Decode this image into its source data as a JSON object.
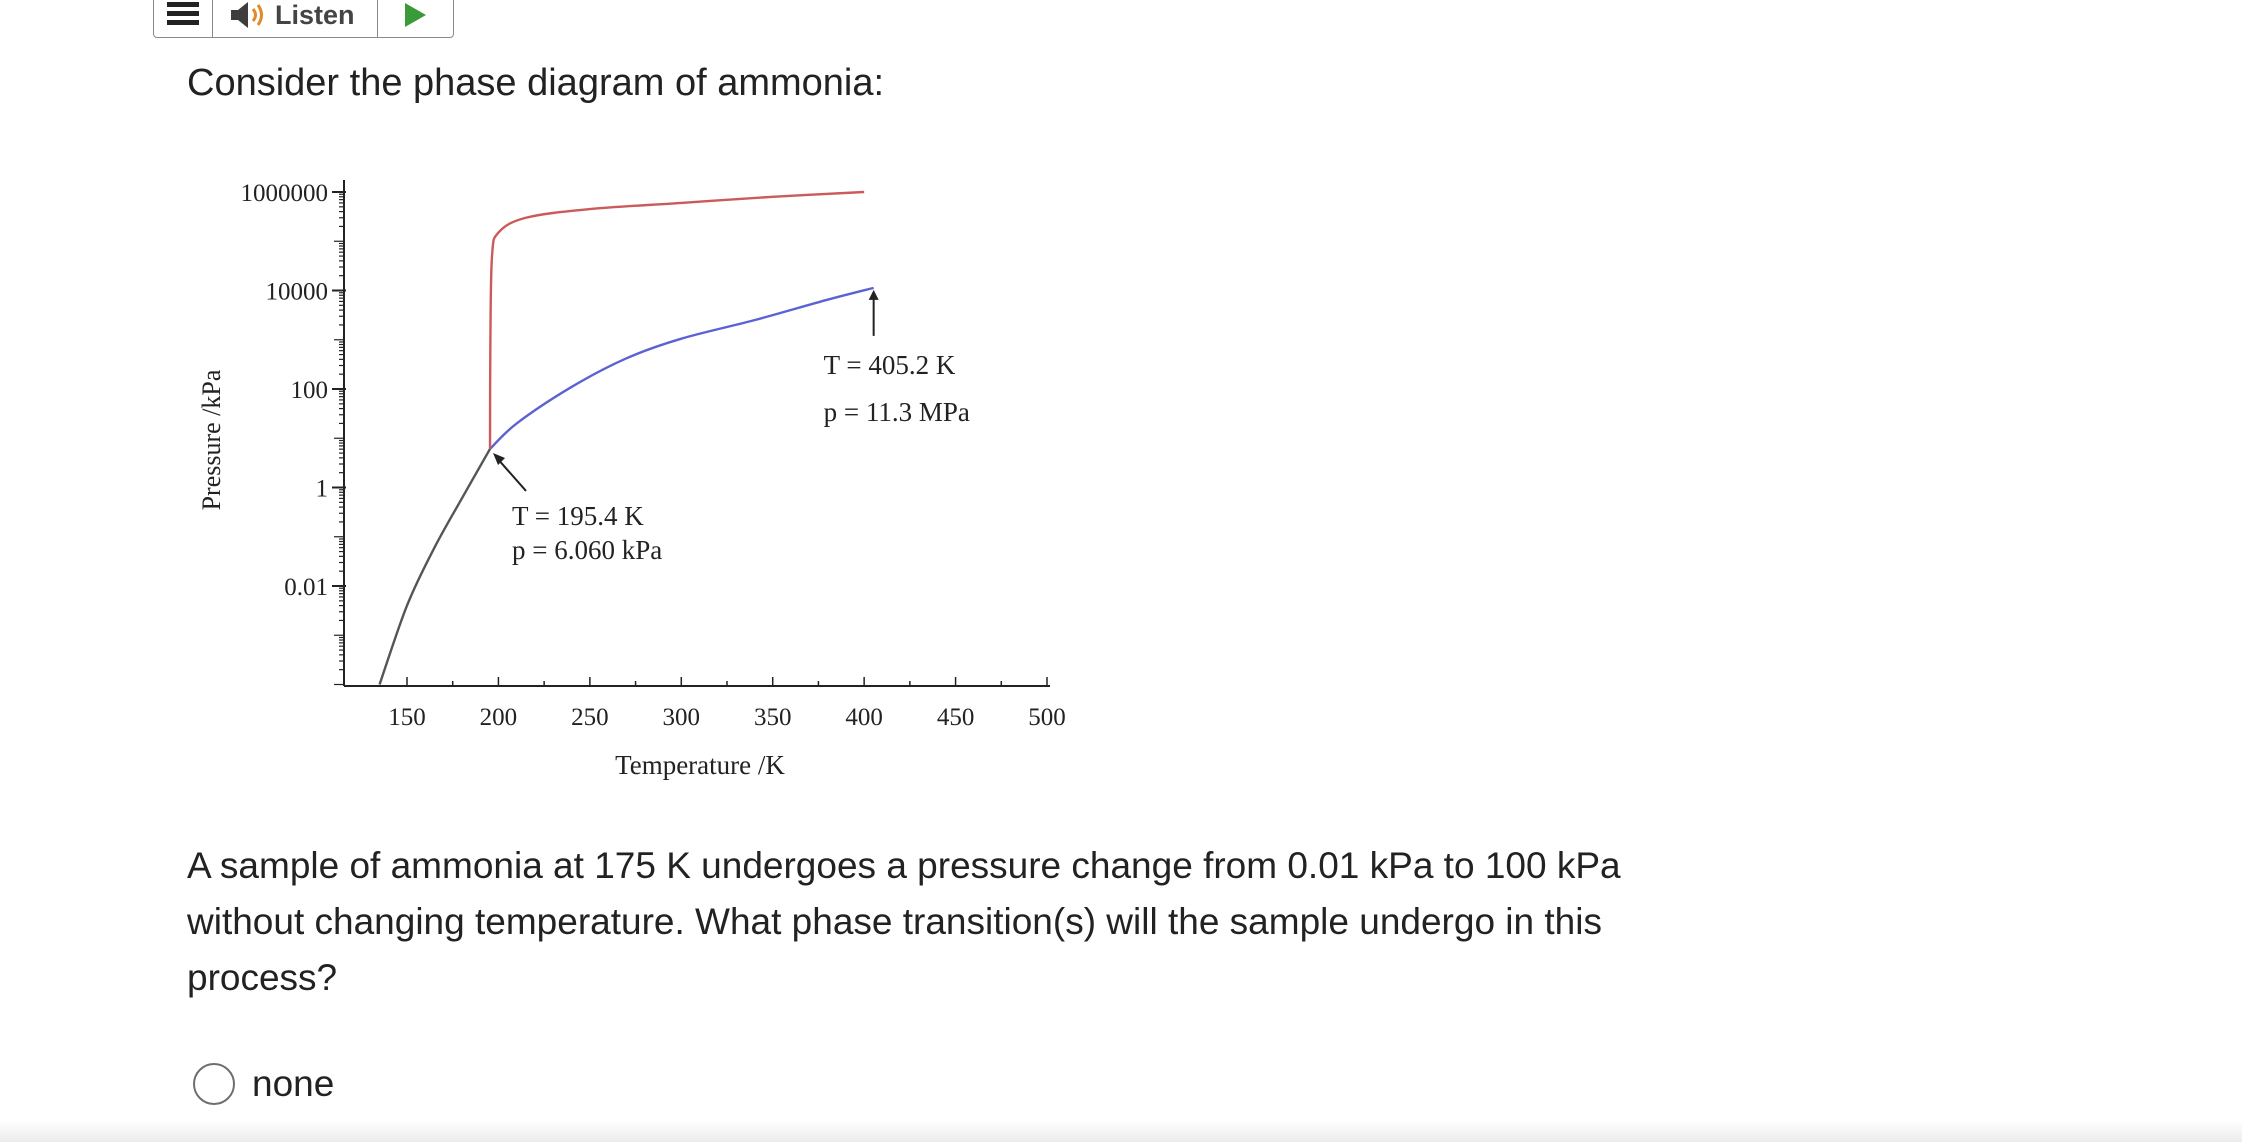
{
  "toolbar": {
    "menu_icon": "hamburger-menu-icon",
    "speaker_icon": "speaker-icon",
    "listen_label": "Listen",
    "play_icon": "play-icon",
    "play_color": "#3a9a3a"
  },
  "prompt": "Consider the phase diagram of ammonia:",
  "chart_data": {
    "type": "line",
    "title": "",
    "xlabel": "Temperature /K",
    "ylabel": "Pressure /kPa",
    "xlim": [
      125,
      500
    ],
    "ylim": [
      0.0001,
      2000000
    ],
    "y_scale": "log",
    "x_ticks": [
      150,
      200,
      250,
      300,
      350,
      400,
      450,
      500
    ],
    "y_tick_labels": [
      "1000000",
      "10000",
      "100",
      "1",
      "0.01"
    ],
    "y_ticks": [
      1000000,
      10000,
      100,
      1,
      0.01
    ],
    "series": [
      {
        "color": "#555555",
        "points": [
          [
            135,
            0.0001
          ],
          [
            150,
            0.004
          ],
          [
            165,
            0.06
          ],
          [
            180,
            0.6
          ],
          [
            195.4,
            6.06
          ]
        ]
      },
      {
        "color": "#5b63d3",
        "points": [
          [
            195.4,
            6.06
          ],
          [
            210,
            20
          ],
          [
            240,
            110
          ],
          [
            270,
            420
          ],
          [
            300,
            1050
          ],
          [
            340,
            2500
          ],
          [
            380,
            6500
          ],
          [
            405.2,
            11300
          ]
        ]
      },
      {
        "color": "#cc5a5a",
        "points": [
          [
            195.4,
            6.06
          ],
          [
            195.6,
            1000
          ],
          [
            196.5,
            50000
          ],
          [
            200,
            150000
          ],
          [
            215,
            300000
          ],
          [
            250,
            450000
          ],
          [
            300,
            600000
          ],
          [
            350,
            800000
          ],
          [
            400,
            1000000
          ]
        ]
      }
    ],
    "annotations": [
      {
        "id": "triple",
        "line1": "T = 195.4 K",
        "line2": "p = 6.060 kPa",
        "point": [
          195.4,
          6.06
        ]
      },
      {
        "id": "critical",
        "line1": "T = 405.2 K",
        "line2": "p = 11.3 MPa",
        "point": [
          405.2,
          11300
        ]
      }
    ]
  },
  "question": "A sample of ammonia at 175 K undergoes a pressure change from 0.01 kPa to 100 kPa without changing temperature. What phase transition(s) will the sample undergo in this process?",
  "options": [
    {
      "label": "none",
      "selected": false
    }
  ]
}
